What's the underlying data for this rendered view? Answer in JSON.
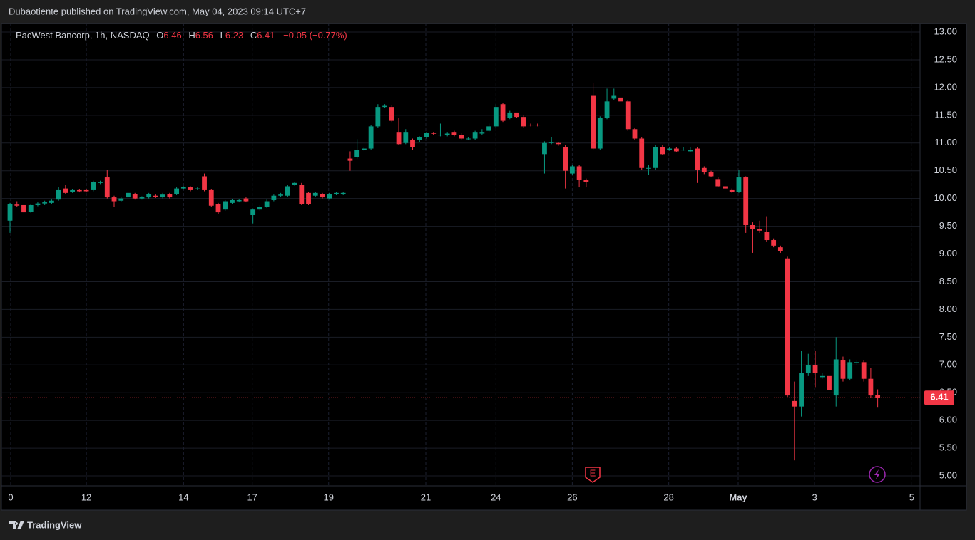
{
  "header": {
    "publisher": "Dubaotiente published on TradingView.com, May 04, 2023 09:14 UTC+7"
  },
  "footer": {
    "brand": "TradingView"
  },
  "chart_data": {
    "type": "candlestick",
    "symbol": "PacWest Bancorp, 1h, NASDAQ",
    "ohlc_labels": {
      "open": "O",
      "high": "H",
      "low": "L",
      "close": "C"
    },
    "change_text": "−0.05 (−0.77%)",
    "up_color": "#089981",
    "down_color": "#f23645",
    "grid": true,
    "earnings_marker": "E",
    "open": [
      9.6,
      9.89,
      9.88,
      9.76,
      9.88,
      9.91,
      9.92,
      9.98,
      10.18,
      10.12,
      10.15,
      10.15,
      10.15,
      10.28,
      10.38,
      10.02,
      9.96,
      10.02,
      10.08,
      10.0,
      10.02,
      10.05,
      10.02,
      10.08,
      10.08,
      10.18,
      10.2,
      10.17,
      10.4,
      10.15,
      9.9,
      9.8,
      9.92,
      9.95,
      10.0,
      9.7,
      9.8,
      9.85,
      9.97,
      10.05,
      10.05,
      10.25,
      10.25,
      10.1,
      10.05,
      10.08,
      10.0,
      10.08,
      10.08,
      10.72,
      10.75,
      10.88,
      10.9,
      11.3,
      11.65,
      11.65,
      11.2,
      11.0,
      11.05,
      11.05,
      11.1,
      11.18,
      11.15,
      11.15,
      11.2,
      11.15,
      11.08,
      11.08,
      11.17,
      11.22,
      11.3,
      11.7,
      11.45,
      11.55,
      11.47,
      11.33,
      11.33,
      10.8,
      11.0,
      11.0,
      10.93,
      10.45,
      10.58,
      10.33,
      11.85,
      10.9,
      11.45,
      11.8,
      11.82,
      11.75,
      11.25,
      11.08,
      10.55,
      10.55,
      10.93,
      10.88,
      10.9,
      10.88,
      10.85,
      10.9,
      10.55,
      10.47,
      10.35,
      10.22,
      10.15,
      10.12,
      10.38,
      9.52,
      9.45,
      9.4,
      9.25,
      9.12,
      8.92,
      6.35,
      6.25,
      6.85,
      7.0,
      6.78,
      6.8,
      6.45,
      7.08,
      6.75,
      7.05,
      7.05,
      6.75,
      6.46
    ],
    "high": [
      9.92,
      9.95,
      9.9,
      9.9,
      9.93,
      9.96,
      9.98,
      10.2,
      10.24,
      10.17,
      10.17,
      10.17,
      10.32,
      10.32,
      10.52,
      10.05,
      10.03,
      10.12,
      10.1,
      10.04,
      10.1,
      10.07,
      10.1,
      10.1,
      10.2,
      10.22,
      10.22,
      10.2,
      10.45,
      10.17,
      9.92,
      9.97,
      9.99,
      9.99,
      10.02,
      9.82,
      9.88,
      9.98,
      10.07,
      10.1,
      10.25,
      10.3,
      10.28,
      10.12,
      10.12,
      10.1,
      10.1,
      10.12,
      10.12,
      10.85,
      11.07,
      10.92,
      11.32,
      11.7,
      11.7,
      11.68,
      11.45,
      11.25,
      11.08,
      11.12,
      11.2,
      11.2,
      11.35,
      11.2,
      11.22,
      11.18,
      11.1,
      11.22,
      11.25,
      11.35,
      11.7,
      11.72,
      11.58,
      11.52,
      11.5,
      11.35,
      11.35,
      11.03,
      11.1,
      11.02,
      10.96,
      10.6,
      10.6,
      10.36,
      12.08,
      11.48,
      11.98,
      11.98,
      11.95,
      11.78,
      11.28,
      11.1,
      10.6,
      10.96,
      10.96,
      10.92,
      10.93,
      10.92,
      10.92,
      10.92,
      10.58,
      10.5,
      10.38,
      10.25,
      10.18,
      10.52,
      10.4,
      9.57,
      9.6,
      9.68,
      9.28,
      9.15,
      8.95,
      6.7,
      7.25,
      7.2,
      7.25,
      6.85,
      6.85,
      7.5,
      7.15,
      7.1,
      7.08,
      7.08,
      6.95,
      6.56
    ],
    "low": [
      9.38,
      9.85,
      9.73,
      9.74,
      9.86,
      9.88,
      9.9,
      9.96,
      10.08,
      10.1,
      10.11,
      10.11,
      10.13,
      10.26,
      10.0,
      9.85,
      9.94,
      10.0,
      9.98,
      9.98,
      10.0,
      10.01,
      10.0,
      10.0,
      10.06,
      10.16,
      10.13,
      10.15,
      10.13,
      9.85,
      9.72,
      9.78,
      9.9,
      9.93,
      9.93,
      9.55,
      9.78,
      9.83,
      9.95,
      10.03,
      10.03,
      10.23,
      9.88,
      9.88,
      10.03,
      10.0,
      9.98,
      10.06,
      10.06,
      10.5,
      10.72,
      10.86,
      10.88,
      11.28,
      11.63,
      11.38,
      10.96,
      10.98,
      10.88,
      11.02,
      11.08,
      11.14,
      11.12,
      11.12,
      11.12,
      11.05,
      11.05,
      11.06,
      11.15,
      11.2,
      11.28,
      11.38,
      11.43,
      11.45,
      11.28,
      11.3,
      11.3,
      10.45,
      10.98,
      10.95,
      10.18,
      10.43,
      10.2,
      10.2,
      10.88,
      10.88,
      11.43,
      11.78,
      11.72,
      11.22,
      11.05,
      10.52,
      10.42,
      10.52,
      10.78,
      10.86,
      10.83,
      10.86,
      10.83,
      10.28,
      10.44,
      10.38,
      10.2,
      10.16,
      10.1,
      10.1,
      9.38,
      9.02,
      9.38,
      9.22,
      9.12,
      9.02,
      6.42,
      5.28,
      6.07,
      6.8,
      6.6,
      6.75,
      6.5,
      6.25,
      6.7,
      6.72,
      7.0,
      6.7,
      6.4,
      6.23
    ],
    "close": [
      9.9,
      9.87,
      9.75,
      9.88,
      9.91,
      9.93,
      9.96,
      10.15,
      10.1,
      10.15,
      10.13,
      10.13,
      10.3,
      10.3,
      10.02,
      9.95,
      10.0,
      10.1,
      10.0,
      10.02,
      10.08,
      10.03,
      10.07,
      10.02,
      10.18,
      10.2,
      10.15,
      10.18,
      10.15,
      9.87,
      9.75,
      9.95,
      9.97,
      9.97,
      9.95,
      9.8,
      9.85,
      9.95,
      10.05,
      10.07,
      10.22,
      10.28,
      9.9,
      9.9,
      10.1,
      10.02,
      10.08,
      10.1,
      10.1,
      10.68,
      10.88,
      10.9,
      11.3,
      11.65,
      11.67,
      11.4,
      10.98,
      11.2,
      10.93,
      11.1,
      11.18,
      11.17,
      11.15,
      11.17,
      11.15,
      11.08,
      11.08,
      11.2,
      11.2,
      11.3,
      11.65,
      11.4,
      11.55,
      11.47,
      11.3,
      11.32,
      11.32,
      11.0,
      11.02,
      10.98,
      10.5,
      10.58,
      10.33,
      10.3,
      10.9,
      11.45,
      11.75,
      11.85,
      11.75,
      11.25,
      11.08,
      10.55,
      10.55,
      10.93,
      10.8,
      10.9,
      10.85,
      10.88,
      10.88,
      10.52,
      10.47,
      10.4,
      10.22,
      10.18,
      10.12,
      10.38,
      9.52,
      9.45,
      9.42,
      9.25,
      9.15,
      9.05,
      6.45,
      6.25,
      6.85,
      7.0,
      6.85,
      6.8,
      6.55,
      7.1,
      6.75,
      7.05,
      7.05,
      6.75,
      6.45,
      6.41
    ],
    "xlim": [
      -1.44,
      131.1
    ],
    "xticks": [
      {
        "value": 0.1,
        "label": "0"
      },
      {
        "value": 11.0,
        "label": "12"
      },
      {
        "value": 25.0,
        "label": "14"
      },
      {
        "value": 34.9,
        "label": "17"
      },
      {
        "value": 45.9,
        "label": "19"
      },
      {
        "value": 59.9,
        "label": "21"
      },
      {
        "value": 70.0,
        "label": "24"
      },
      {
        "value": 81.0,
        "label": "26"
      },
      {
        "value": 94.9,
        "label": "28"
      },
      {
        "value": 104.9,
        "label": "May"
      },
      {
        "value": 115.9,
        "label": "3"
      },
      {
        "value": 129.9,
        "label": "5"
      }
    ],
    "ylim": [
      5,
      13
    ],
    "yticks": [
      {
        "value": 5,
        "label": "5.00"
      },
      {
        "value": 5.5,
        "label": "5.50"
      },
      {
        "value": 6,
        "label": "6.00"
      },
      {
        "value": 6.5,
        "label": "6.50"
      },
      {
        "value": 7,
        "label": "7.00"
      },
      {
        "value": 7.5,
        "label": "7.50"
      },
      {
        "value": 8,
        "label": "8.00"
      },
      {
        "value": 8.5,
        "label": "8.50"
      },
      {
        "value": 9,
        "label": "9.00"
      },
      {
        "value": 9.5,
        "label": "9.50"
      },
      {
        "value": 10,
        "label": "10.00"
      },
      {
        "value": 10.5,
        "label": "10.50"
      },
      {
        "value": 11,
        "label": "11.00"
      },
      {
        "value": 11.5,
        "label": "11.50"
      },
      {
        "value": 12,
        "label": "12.00"
      },
      {
        "value": 12.5,
        "label": "12.50"
      },
      {
        "value": 13,
        "label": "13.00"
      }
    ]
  }
}
